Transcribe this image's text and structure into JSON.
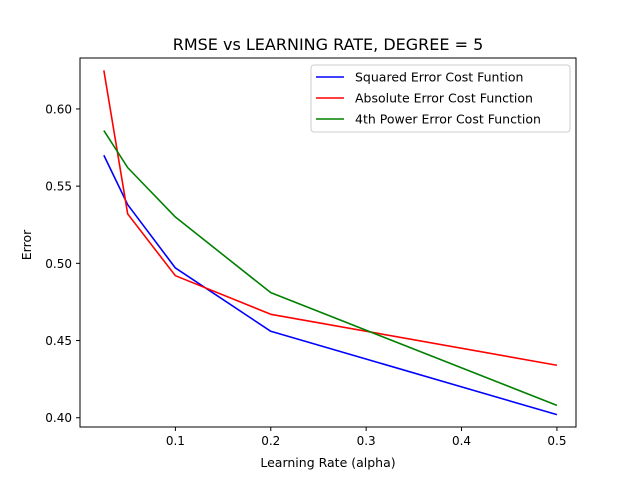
{
  "chart_data": {
    "type": "line",
    "title": "RMSE vs LEARNING RATE, DEGREE = 5",
    "xlabel": "Learning Rate (alpha)",
    "ylabel": "Error",
    "xlim": [
      0.0,
      0.52
    ],
    "ylim": [
      0.394,
      0.633
    ],
    "xticks": [
      0.1,
      0.2,
      0.3,
      0.4,
      0.5
    ],
    "xtick_labels": [
      "0.1",
      "0.2",
      "0.3",
      "0.4",
      "0.5"
    ],
    "yticks": [
      0.4,
      0.45,
      0.5,
      0.55,
      0.6
    ],
    "ytick_labels": [
      "0.40",
      "0.45",
      "0.50",
      "0.55",
      "0.60"
    ],
    "grid": false,
    "legend_position": "top-right",
    "x": [
      0.025,
      0.05,
      0.1,
      0.2,
      0.5
    ],
    "series": [
      {
        "name": "Squared Error Cost Funtion",
        "color": "#0000ff",
        "values": [
          0.57,
          0.538,
          0.497,
          0.456,
          0.402
        ]
      },
      {
        "name": "Absolute Error Cost Function",
        "color": "#ff0000",
        "values": [
          0.625,
          0.532,
          0.492,
          0.467,
          0.434
        ]
      },
      {
        "name": "4th Power Error Cost Function",
        "color": "#008000",
        "values": [
          0.586,
          0.562,
          0.53,
          0.481,
          0.408
        ]
      }
    ]
  }
}
